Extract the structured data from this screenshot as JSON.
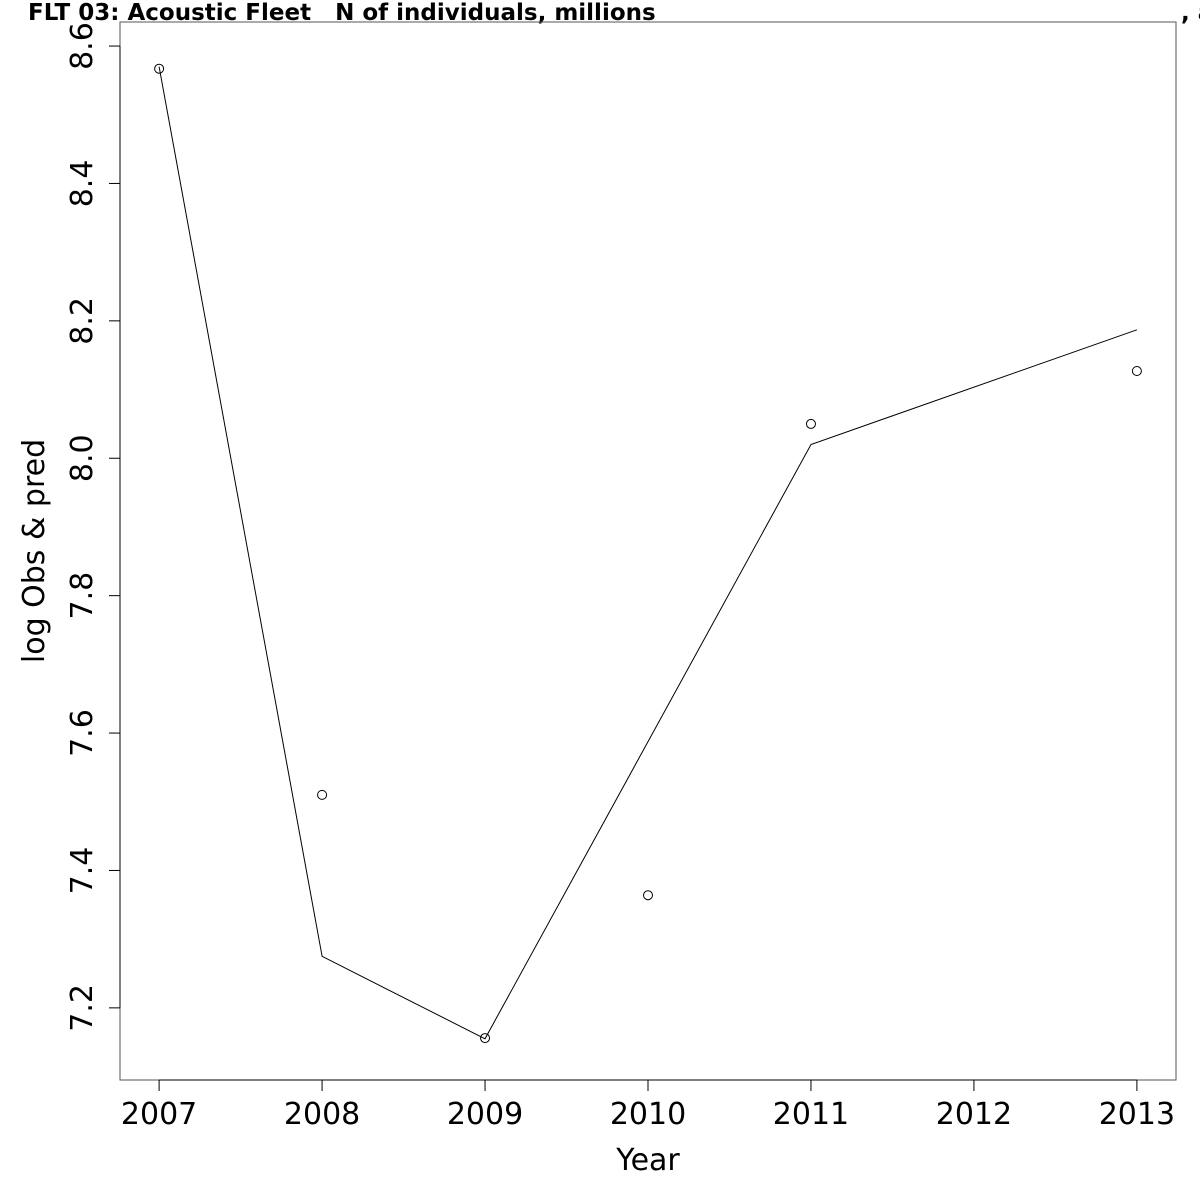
{
  "title": "FLT 03: Acoustic Fleet   N of individuals, millions",
  "title_tail": ", a",
  "chart_data": {
    "type": "line",
    "xlabel": "Year",
    "ylabel": "log Obs & pred",
    "xlim": [
      2006.76,
      2013.24
    ],
    "ylim": [
      7.095,
      8.635
    ],
    "x_ticks": [
      2007,
      2008,
      2009,
      2010,
      2011,
      2012,
      2013
    ],
    "x_tick_labels": [
      "2007",
      "2008",
      "2009",
      "2010",
      "2011",
      "2012",
      "2013"
    ],
    "y_ticks": [
      7.2,
      7.4,
      7.6,
      7.8,
      8.0,
      8.2,
      8.4,
      8.6
    ],
    "y_tick_labels": [
      "7.2",
      "7.4",
      "7.6",
      "7.8",
      "8.0",
      "8.2",
      "8.4",
      "8.6"
    ],
    "series": [
      {
        "type": "line",
        "x": [
          2007,
          2008,
          2009,
          2011,
          2013
        ],
        "y": [
          8.57,
          7.275,
          7.155,
          8.02,
          8.187
        ]
      },
      {
        "type": "scatter",
        "marker": "open-circle",
        "x": [
          2007,
          2008,
          2009,
          2010,
          2011,
          2013
        ],
        "y": [
          8.567,
          7.51,
          7.156,
          7.364,
          8.05,
          8.127
        ]
      }
    ],
    "grid": false,
    "color": "#000000"
  }
}
